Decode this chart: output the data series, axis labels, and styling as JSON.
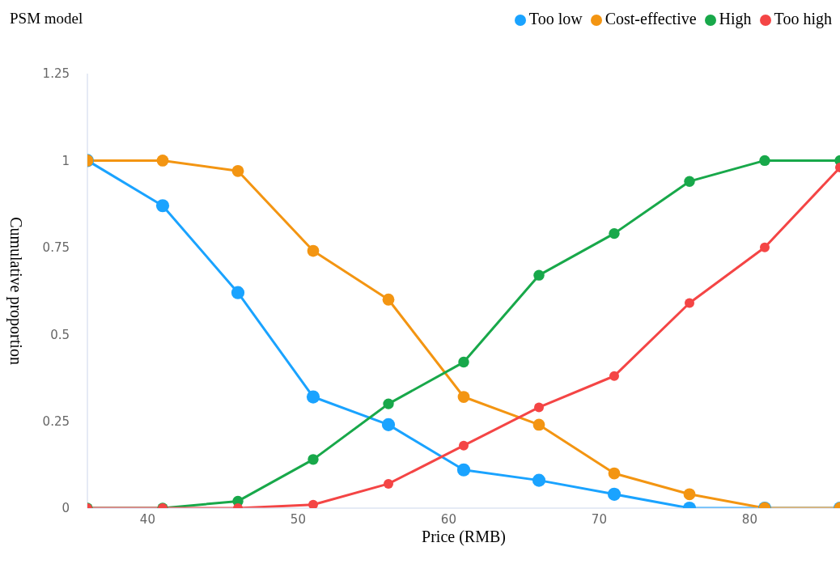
{
  "chart_data": {
    "type": "line",
    "title": "PSM model",
    "xlabel": "Price (RMB)",
    "ylabel": "Cumulative proportion",
    "x": [
      36,
      41,
      46,
      51,
      56,
      61,
      66,
      71,
      76,
      81,
      86
    ],
    "series": [
      {
        "name": "Too low",
        "color": "#1aa3ff",
        "values": [
          1,
          0.87,
          0.62,
          0.32,
          0.24,
          0.11,
          0.08,
          0.04,
          0,
          0,
          0
        ]
      },
      {
        "name": "Cost-effective",
        "color": "#f39512",
        "values": [
          1,
          1,
          0.97,
          0.74,
          0.6,
          0.32,
          0.24,
          0.1,
          0.04,
          0,
          0
        ]
      },
      {
        "name": "High",
        "color": "#18a84a",
        "values": [
          0,
          0,
          0.02,
          0.14,
          0.3,
          0.42,
          0.67,
          0.79,
          0.94,
          1,
          1
        ]
      },
      {
        "name": "Too high",
        "color": "#f44545",
        "values": [
          0,
          0,
          0,
          0.01,
          0.07,
          0.18,
          0.29,
          0.38,
          0.59,
          0.75,
          0.98
        ]
      }
    ],
    "xlim": [
      36,
      86
    ],
    "xticks": [
      40,
      50,
      60,
      70,
      80
    ],
    "ylim": [
      0,
      1.25
    ],
    "yticks": [
      0,
      0.25,
      0.5,
      0.75,
      1,
      1.25
    ],
    "legend": "top right",
    "marker": "circle",
    "line_style": "solid"
  }
}
